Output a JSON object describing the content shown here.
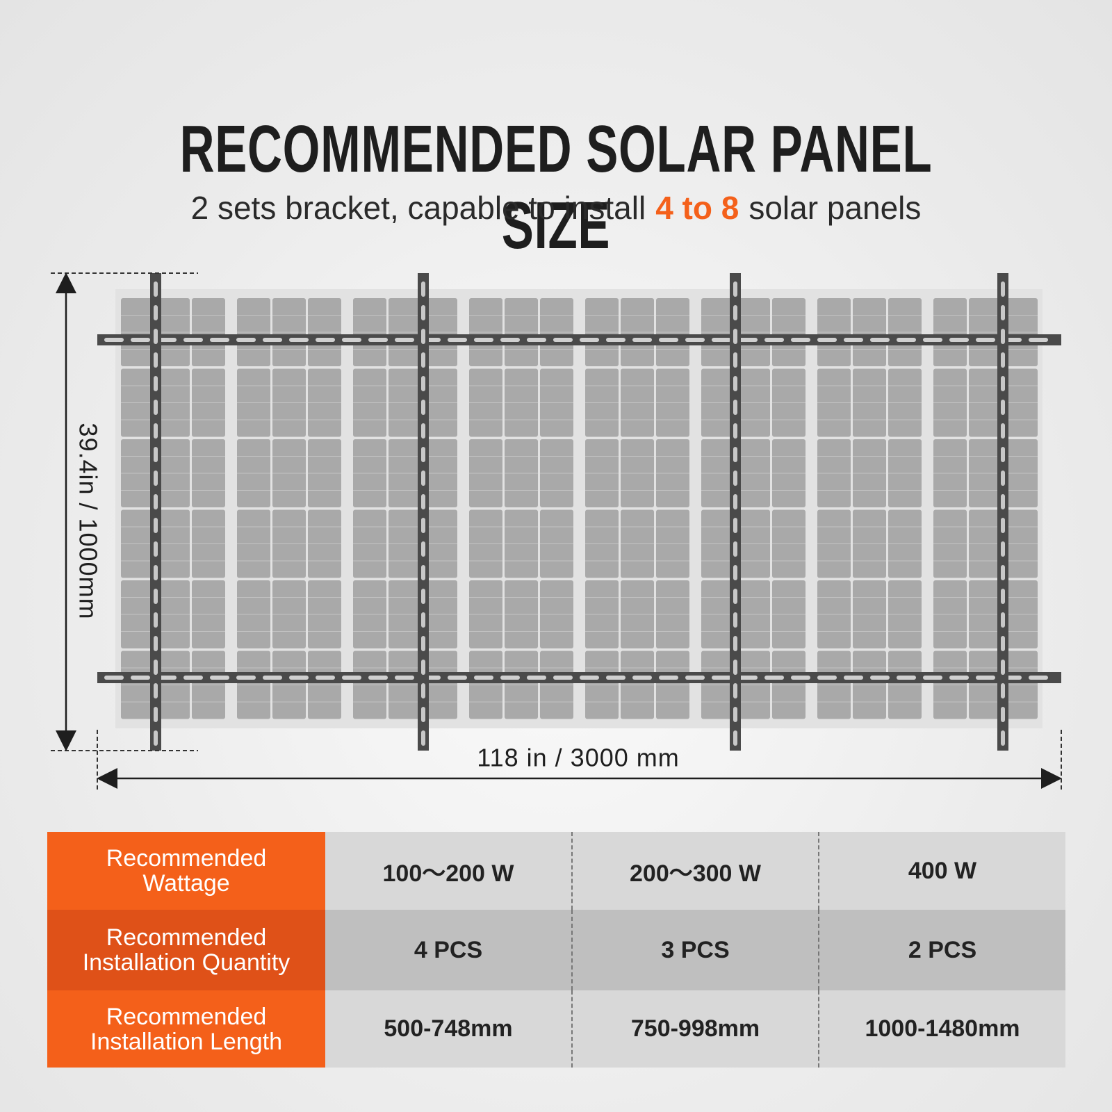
{
  "title": "RECOMMENDED SOLAR PANEL SIZE",
  "subtitle": {
    "before": "2 sets bracket, capable to install",
    "highlight": "4 to 8",
    "after": "solar panels"
  },
  "diagram": {
    "height_label": "39.4in / 1000mm",
    "width_label": "118 in / 3000 mm"
  },
  "table": {
    "rows": [
      {
        "header": "Recommended Wattage",
        "cells": [
          "100～200 W",
          "200～300 W",
          "400 W"
        ]
      },
      {
        "header": "Recommended Installation Quantity",
        "cells": [
          "4 PCS",
          "3 PCS",
          "2 PCS"
        ]
      },
      {
        "header": "Recommended Installation Length",
        "cells": [
          "500-748mm",
          "750-998mm",
          "1000-1480mm"
        ]
      }
    ]
  }
}
